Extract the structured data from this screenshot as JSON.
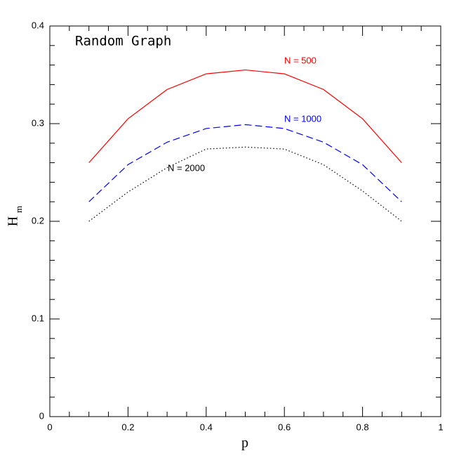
{
  "chart_data": {
    "type": "line",
    "title": "Random Graph",
    "xlabel": "p",
    "ylabel": {
      "base": "H",
      "sub": "m"
    },
    "x": [
      0.1,
      0.2,
      0.3,
      0.4,
      0.5,
      0.6,
      0.7,
      0.8,
      0.9
    ],
    "series": [
      {
        "name": "N = 500",
        "color": "#ff0000",
        "linestyle": "solid",
        "values": [
          0.26,
          0.305,
          0.335,
          0.351,
          0.355,
          0.351,
          0.335,
          0.305,
          0.26
        ]
      },
      {
        "name": "N = 1000",
        "color": "#0000ff",
        "linestyle": "dashed",
        "values": [
          0.22,
          0.258,
          0.281,
          0.295,
          0.299,
          0.295,
          0.281,
          0.258,
          0.22
        ]
      },
      {
        "name": "N = 2000",
        "color": "#000000",
        "linestyle": "dotted",
        "values": [
          0.2,
          0.23,
          0.255,
          0.274,
          0.276,
          0.274,
          0.258,
          0.231,
          0.2
        ]
      }
    ],
    "xlim": [
      0,
      1
    ],
    "ylim": [
      0,
      0.4
    ],
    "xticks": [
      0,
      0.2,
      0.4,
      0.6,
      0.8,
      1
    ],
    "yticks": [
      0,
      0.1,
      0.2,
      0.3,
      0.4
    ],
    "xminorticks": [
      0.05,
      0.1,
      0.15,
      0.25,
      0.3,
      0.35,
      0.45,
      0.5,
      0.55,
      0.65,
      0.7,
      0.75,
      0.85,
      0.9,
      0.95
    ],
    "yminorticks": [
      0.02,
      0.04,
      0.06,
      0.08,
      0.12,
      0.14,
      0.16,
      0.18,
      0.22,
      0.24,
      0.26,
      0.28,
      0.32,
      0.34,
      0.36,
      0.38
    ]
  }
}
